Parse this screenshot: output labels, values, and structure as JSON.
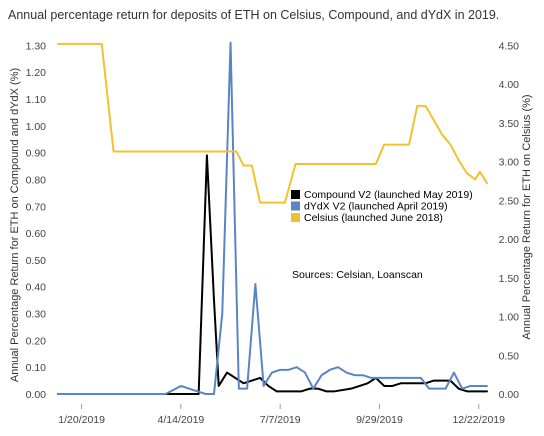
{
  "chart_data": {
    "type": "line",
    "title": "Annual percentage return for deposits of ETH on Celsius, Compound, and dYdX in 2019.",
    "xlabel": "",
    "ylabel_left": "Annual Percentage Return for ETH on Compound and dYdX (%)",
    "ylabel_right": "Annual Percentage Return for ETH on Celsius (%)",
    "x_ticks": [
      "1/20/2019",
      "4/14/2019",
      "7/7/2019",
      "9/29/2019",
      "12/22/2019"
    ],
    "x_tick_dates": [
      "2019-01-20",
      "2019-04-14",
      "2019-07-07",
      "2019-09-29",
      "2019-12-22"
    ],
    "xlim": [
      "2018-12-31",
      "2019-12-29"
    ],
    "y_left_ticks": [
      "0.00",
      "0.10",
      "0.20",
      "0.30",
      "0.40",
      "0.50",
      "0.60",
      "0.70",
      "0.80",
      "0.90",
      "1.00",
      "1.10",
      "1.20",
      "1.30"
    ],
    "ylim_left": [
      0,
      1.32
    ],
    "y_right_ticks": [
      "0.00",
      "0.50",
      "1.00",
      "1.50",
      "2.00",
      "2.50",
      "3.00",
      "3.50",
      "4.00",
      "4.50"
    ],
    "ylim_right": [
      0,
      4.57
    ],
    "grid": false,
    "legend_position": "right-middle",
    "annotation": "Sources: Celsian, Loanscan",
    "series": [
      {
        "name": "Compound V2 (launched May 2019)",
        "axis": "left",
        "color": "#000000",
        "points": [
          [
            "2018-12-31",
            0.0
          ],
          [
            "2019-02-15",
            0.0
          ],
          [
            "2019-04-01",
            0.0
          ],
          [
            "2019-04-29",
            0.0
          ],
          [
            "2019-05-06",
            0.89
          ],
          [
            "2019-05-12",
            0.35
          ],
          [
            "2019-05-16",
            0.03
          ],
          [
            "2019-05-23",
            0.08
          ],
          [
            "2019-06-06",
            0.04
          ],
          [
            "2019-06-20",
            0.06
          ],
          [
            "2019-06-27",
            0.03
          ],
          [
            "2019-07-04",
            0.01
          ],
          [
            "2019-07-18",
            0.01
          ],
          [
            "2019-07-25",
            0.01
          ],
          [
            "2019-08-01",
            0.02
          ],
          [
            "2019-08-08",
            0.02
          ],
          [
            "2019-08-15",
            0.01
          ],
          [
            "2019-08-22",
            0.01
          ],
          [
            "2019-09-05",
            0.02
          ],
          [
            "2019-09-19",
            0.04
          ],
          [
            "2019-09-26",
            0.06
          ],
          [
            "2019-10-03",
            0.03
          ],
          [
            "2019-10-10",
            0.03
          ],
          [
            "2019-10-17",
            0.04
          ],
          [
            "2019-10-31",
            0.04
          ],
          [
            "2019-11-07",
            0.04
          ],
          [
            "2019-11-14",
            0.05
          ],
          [
            "2019-11-28",
            0.05
          ],
          [
            "2019-12-05",
            0.02
          ],
          [
            "2019-12-12",
            0.01
          ],
          [
            "2019-12-29",
            0.01
          ]
        ]
      },
      {
        "name": "dYdX V2 (launched April 2019)",
        "axis": "left",
        "color": "#5b84c4",
        "points": [
          [
            "2018-12-31",
            0.0
          ],
          [
            "2019-04-01",
            0.0
          ],
          [
            "2019-04-14",
            0.03
          ],
          [
            "2019-04-21",
            0.02
          ],
          [
            "2019-04-28",
            0.01
          ],
          [
            "2019-05-05",
            0.0
          ],
          [
            "2019-05-12",
            0.0
          ],
          [
            "2019-05-19",
            0.3
          ],
          [
            "2019-05-26",
            1.31
          ],
          [
            "2019-06-02",
            0.02
          ],
          [
            "2019-06-09",
            0.02
          ],
          [
            "2019-06-16",
            0.41
          ],
          [
            "2019-06-23",
            0.03
          ],
          [
            "2019-06-30",
            0.08
          ],
          [
            "2019-07-07",
            0.09
          ],
          [
            "2019-07-14",
            0.09
          ],
          [
            "2019-07-21",
            0.1
          ],
          [
            "2019-07-28",
            0.08
          ],
          [
            "2019-08-04",
            0.02
          ],
          [
            "2019-08-11",
            0.07
          ],
          [
            "2019-08-18",
            0.09
          ],
          [
            "2019-08-25",
            0.1
          ],
          [
            "2019-09-01",
            0.08
          ],
          [
            "2019-09-08",
            0.07
          ],
          [
            "2019-09-15",
            0.07
          ],
          [
            "2019-09-22",
            0.06
          ],
          [
            "2019-09-29",
            0.06
          ],
          [
            "2019-10-06",
            0.06
          ],
          [
            "2019-10-13",
            0.06
          ],
          [
            "2019-10-20",
            0.06
          ],
          [
            "2019-10-27",
            0.06
          ],
          [
            "2019-11-03",
            0.06
          ],
          [
            "2019-11-10",
            0.02
          ],
          [
            "2019-11-17",
            0.02
          ],
          [
            "2019-11-24",
            0.02
          ],
          [
            "2019-12-01",
            0.08
          ],
          [
            "2019-12-08",
            0.02
          ],
          [
            "2019-12-15",
            0.03
          ],
          [
            "2019-12-22",
            0.03
          ],
          [
            "2019-12-29",
            0.03
          ]
        ]
      },
      {
        "name": "Celsius (launched June 2018)",
        "axis": "right",
        "color": "#f2c12e",
        "points": [
          [
            "2018-12-31",
            4.52
          ],
          [
            "2019-02-06",
            4.52
          ],
          [
            "2019-02-16",
            3.13
          ],
          [
            "2019-04-01",
            3.13
          ],
          [
            "2019-05-01",
            3.13
          ],
          [
            "2019-05-31",
            3.13
          ],
          [
            "2019-06-06",
            2.95
          ],
          [
            "2019-06-13",
            2.95
          ],
          [
            "2019-06-20",
            2.47
          ],
          [
            "2019-06-27",
            2.47
          ],
          [
            "2019-07-04",
            2.47
          ],
          [
            "2019-07-11",
            2.47
          ],
          [
            "2019-07-20",
            2.97
          ],
          [
            "2019-08-15",
            2.97
          ],
          [
            "2019-09-05",
            2.97
          ],
          [
            "2019-09-26",
            2.97
          ],
          [
            "2019-10-03",
            3.22
          ],
          [
            "2019-10-24",
            3.22
          ],
          [
            "2019-10-31",
            3.72
          ],
          [
            "2019-11-07",
            3.72
          ],
          [
            "2019-11-21",
            3.35
          ],
          [
            "2019-11-28",
            3.22
          ],
          [
            "2019-12-05",
            3.02
          ],
          [
            "2019-12-12",
            2.85
          ],
          [
            "2019-12-19",
            2.77
          ],
          [
            "2019-12-23",
            2.87
          ],
          [
            "2019-12-29",
            2.72
          ]
        ]
      }
    ]
  }
}
